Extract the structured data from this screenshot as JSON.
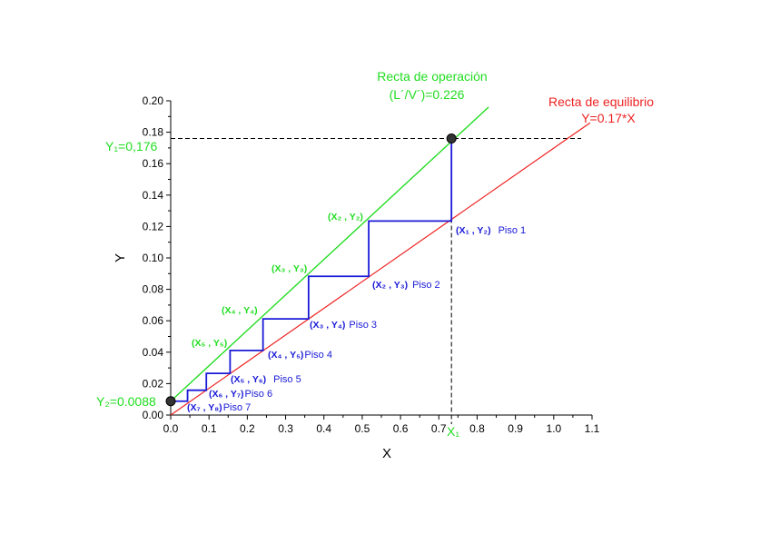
{
  "chart_data": {
    "type": "line",
    "xlabel": "X",
    "ylabel": "Y",
    "xlim": [
      0.0,
      1.1
    ],
    "ylim": [
      0.0,
      0.2
    ],
    "x_ticks": [
      "0.0",
      "0.1",
      "0.2",
      "0.3",
      "0.4",
      "0.5",
      "0.6",
      "0.7",
      "0.8",
      "0.9",
      "1.0",
      "1.1"
    ],
    "y_ticks": [
      "0.00",
      "0.02",
      "0.04",
      "0.06",
      "0.08",
      "0.10",
      "0.12",
      "0.14",
      "0.16",
      "0.18",
      "0.20"
    ],
    "colors": {
      "operating": "#22dd22",
      "equilibrium": "#ee2222",
      "stages": "#1a1ad8",
      "guides": "#000000"
    },
    "operating_line": {
      "title_line1": "Recta de operación",
      "title_line2": "(L´/V´)=0.226",
      "x": [
        0.0,
        0.83
      ],
      "y": [
        0.0088,
        0.196
      ]
    },
    "equilibrium_line": {
      "title_line1": "Recta de equilibrio",
      "title_line2": "Y=0.17*X",
      "x": [
        0.0,
        1.095
      ],
      "y": [
        0.0,
        0.186
      ]
    },
    "stages": {
      "x": [
        0.733,
        0.517,
        0.36,
        0.241,
        0.155,
        0.093,
        0.044
      ],
      "y_top": [
        0.176,
        0.1235,
        0.0883,
        0.0612,
        0.0411,
        0.0265,
        0.0158
      ],
      "y_bottom": [
        0.1235,
        0.0883,
        0.0612,
        0.0411,
        0.0265,
        0.0158,
        0.0088
      ]
    },
    "endpoints": [
      {
        "x": 0.733,
        "y": 0.176
      },
      {
        "x": 0.0,
        "y": 0.0088
      }
    ],
    "annotations": {
      "y1_label": "Y₁=0,176",
      "y2_label": "Y₂=0.0088",
      "x1_label": "X₁",
      "equilibrium_stages": [
        {
          "text": "(X₁ , Y₂)",
          "piso": "Piso 1"
        },
        {
          "text": "(X₂ , Y₃)",
          "piso": "Piso 2"
        },
        {
          "text": "(X₃ , Y₄)",
          "piso": "Piso 3"
        },
        {
          "text": "(X₄ , Y₅)",
          "piso": "Piso 4"
        },
        {
          "text": "(X₅ , Y₆)",
          "piso": "Piso 5"
        },
        {
          "text": "(X₆ , Y₇)",
          "piso": "Piso 6"
        },
        {
          "text": "(X₇ , Y₈)",
          "piso": "Piso 7"
        }
      ],
      "operating_points": [
        "(X₂ , Y₂)",
        "(X₃ , Y₃)",
        "(X₄ , Y₄)",
        "(X₅ , Y₅)"
      ]
    }
  }
}
